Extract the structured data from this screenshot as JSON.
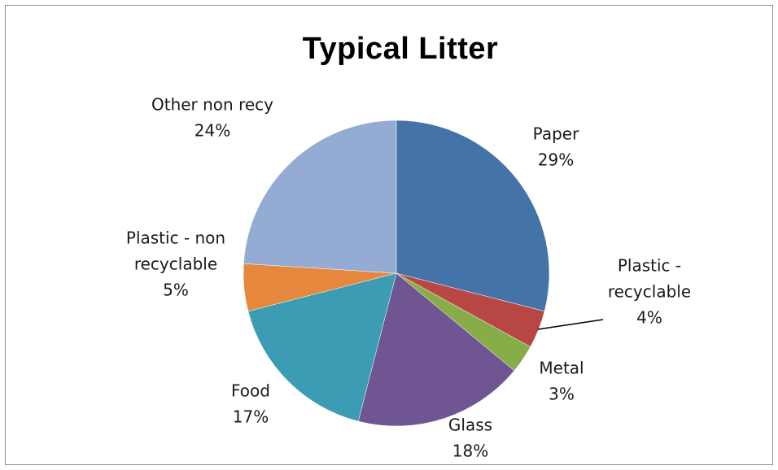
{
  "chart_data": {
    "type": "pie",
    "title": "Typical Litter",
    "slices": [
      {
        "label_lines": [
          "Paper"
        ],
        "percent_label": "29%",
        "value": 29,
        "color": "#4473a8"
      },
      {
        "label_lines": [
          "Plastic -",
          "recyclable"
        ],
        "percent_label": "4%",
        "value": 4,
        "color": "#b84744"
      },
      {
        "label_lines": [
          "Metal"
        ],
        "percent_label": "3%",
        "value": 3,
        "color": "#87ad48"
      },
      {
        "label_lines": [
          "Glass"
        ],
        "percent_label": "18%",
        "value": 18,
        "color": "#6f5591"
      },
      {
        "label_lines": [
          "Food"
        ],
        "percent_label": "17%",
        "value": 17,
        "color": "#3c9cb4"
      },
      {
        "label_lines": [
          "Plastic - non",
          "recyclable"
        ],
        "percent_label": "5%",
        "value": 5,
        "color": "#e5873d"
      },
      {
        "label_lines": [
          "Other non recy"
        ],
        "percent_label": "24%",
        "value": 24,
        "color": "#94acd3"
      }
    ]
  }
}
